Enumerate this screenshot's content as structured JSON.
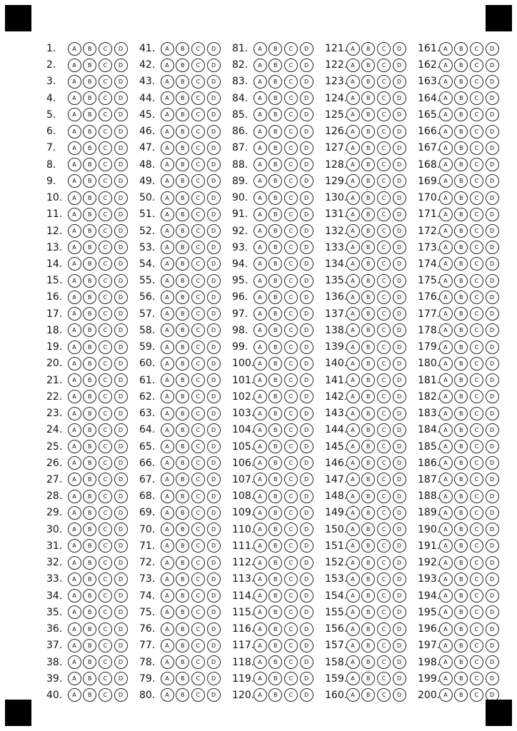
{
  "options": [
    "A",
    "B",
    "C",
    "D"
  ],
  "question_numbers": [
    1,
    2,
    3,
    4,
    5,
    6,
    7,
    8,
    9,
    10,
    11,
    12,
    13,
    14,
    15,
    16,
    17,
    18,
    19,
    20,
    21,
    22,
    23,
    24,
    25,
    26,
    27,
    28,
    29,
    30,
    31,
    32,
    33,
    34,
    35,
    36,
    37,
    38,
    39,
    40,
    41,
    42,
    43,
    44,
    45,
    46,
    47,
    48,
    49,
    50,
    51,
    52,
    53,
    54,
    55,
    56,
    57,
    58,
    59,
    60,
    61,
    62,
    63,
    64,
    65,
    66,
    67,
    68,
    69,
    70,
    71,
    72,
    73,
    74,
    75,
    76,
    77,
    78,
    79,
    80,
    81,
    82,
    83,
    84,
    85,
    86,
    87,
    88,
    89,
    90,
    91,
    92,
    93,
    94,
    95,
    96,
    97,
    98,
    99,
    100,
    101,
    102,
    103,
    104,
    105,
    106,
    107,
    108,
    109,
    110,
    111,
    112,
    113,
    114,
    115,
    116,
    117,
    118,
    119,
    120,
    121,
    122,
    123,
    124,
    125,
    126,
    127,
    128,
    129,
    130,
    131,
    132,
    133,
    134,
    135,
    136,
    137,
    138,
    139,
    140,
    141,
    142,
    143,
    144,
    145,
    146,
    147,
    148,
    149,
    150,
    151,
    152,
    153,
    154,
    155,
    156,
    157,
    158,
    159,
    160,
    161,
    162,
    163,
    164,
    165,
    166,
    167,
    168,
    169,
    170,
    171,
    172,
    173,
    174,
    175,
    176,
    177,
    178,
    179,
    180,
    181,
    182,
    183,
    184,
    185,
    186,
    187,
    188,
    189,
    190,
    191,
    192,
    193,
    194,
    195,
    196,
    197,
    198,
    199,
    200
  ],
  "registration_mark_color": "#000000"
}
